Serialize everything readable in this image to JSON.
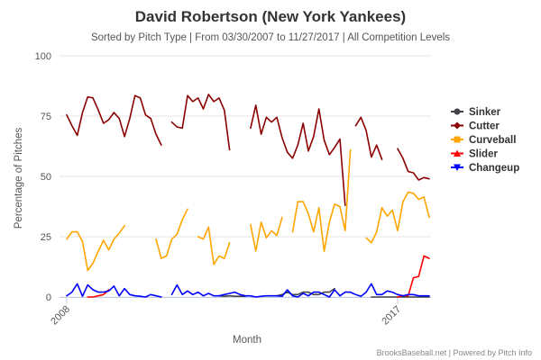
{
  "chart_data": {
    "type": "line",
    "title": "David Robertson (New York Yankees)",
    "subtitle": "Sorted by Pitch Type | From 03/30/2007 to 11/27/2017 | All Competition Levels",
    "xlabel": "Month",
    "ylabel": "Percentage of Pitches",
    "ylim": [
      0,
      100
    ],
    "y_ticks": [
      0,
      25,
      50,
      75,
      100
    ],
    "x_tick_labels": [
      {
        "label": "2008",
        "month": 0
      },
      {
        "label": "2017",
        "month": 63
      }
    ],
    "grid": true,
    "legend_position": "right",
    "x": [
      0,
      1,
      2,
      3,
      4,
      5,
      6,
      7,
      8,
      9,
      10,
      11,
      12,
      13,
      14,
      15,
      16,
      17,
      18,
      19,
      20,
      21,
      22,
      23,
      24,
      25,
      26,
      27,
      28,
      29,
      30,
      31,
      32,
      33,
      34,
      35,
      36,
      37,
      38,
      39,
      40,
      41,
      42,
      43,
      44,
      45,
      46,
      47,
      48,
      49,
      50,
      51,
      52,
      53,
      54,
      55,
      56,
      57,
      58,
      59,
      60,
      61,
      62,
      63,
      64,
      65,
      66,
      67,
      68,
      69
    ],
    "series": [
      {
        "name": "Sinker",
        "color": "#434348",
        "values": [
          null,
          null,
          null,
          null,
          null,
          null,
          null,
          null,
          null,
          null,
          null,
          null,
          null,
          null,
          null,
          null,
          null,
          null,
          null,
          null,
          null,
          null,
          null,
          null,
          null,
          null,
          null,
          null,
          null,
          0.5,
          0.3,
          0.5,
          0.3,
          0.3,
          0.3,
          null,
          null,
          null,
          null,
          null,
          0.5,
          1,
          2,
          1,
          1,
          2,
          2,
          1,
          1,
          2,
          2,
          3.5,
          null,
          null,
          null,
          null,
          null,
          null,
          0,
          0,
          0,
          0,
          0,
          0,
          0,
          0,
          0,
          0,
          0,
          0
        ]
      },
      {
        "name": "Cutter",
        "color": "#8B0000",
        "values": [
          75.5,
          71,
          67,
          76.5,
          83,
          82.5,
          77.5,
          72,
          73.5,
          76.5,
          74,
          66.5,
          74,
          83.5,
          82.5,
          75.5,
          74,
          67.5,
          63,
          null,
          72.5,
          70.5,
          70,
          83.5,
          81,
          82.5,
          78,
          84,
          81,
          82.5,
          77.5,
          61,
          null,
          null,
          null,
          70,
          79.5,
          67.5,
          74.5,
          72.5,
          74.5,
          66,
          60,
          57.5,
          63,
          72,
          60.5,
          66.5,
          78,
          65,
          59,
          62,
          65.5,
          38,
          null,
          71,
          74.5,
          69,
          58,
          63,
          57,
          null,
          null,
          61.5,
          57.5,
          52,
          51.5,
          48.5,
          49.5,
          49
        ]
      },
      {
        "name": "Curveball",
        "color": "#FFA500",
        "values": [
          24,
          27,
          27,
          23,
          11,
          14,
          19,
          23.5,
          19.5,
          24,
          26.5,
          29.5,
          null,
          null,
          null,
          null,
          null,
          24,
          16,
          17,
          24,
          26,
          32,
          36.5,
          null,
          25,
          24,
          29,
          13.5,
          17,
          16,
          22.5,
          null,
          null,
          null,
          30,
          19,
          31,
          24.5,
          27.5,
          25.5,
          33,
          null,
          27,
          39.5,
          39.5,
          34.5,
          27,
          37,
          19,
          31,
          38.5,
          37.5,
          27.5,
          61,
          null,
          null,
          24.5,
          22.5,
          27,
          37,
          33.5,
          36,
          27.5,
          39.5,
          43.5,
          43,
          40.5,
          41.5,
          33
        ]
      },
      {
        "name": "Slider",
        "color": "#FF0000",
        "values": [
          null,
          null,
          null,
          null,
          0,
          0,
          0.5,
          1,
          3,
          null,
          null,
          null,
          null,
          null,
          null,
          null,
          null,
          null,
          null,
          null,
          null,
          null,
          null,
          null,
          null,
          null,
          null,
          null,
          null,
          null,
          null,
          null,
          null,
          null,
          null,
          null,
          null,
          null,
          null,
          null,
          null,
          null,
          null,
          null,
          null,
          null,
          null,
          null,
          null,
          null,
          null,
          null,
          null,
          null,
          null,
          null,
          null,
          null,
          null,
          null,
          null,
          null,
          null,
          0,
          0.5,
          0.5,
          8,
          8.5,
          17,
          16
        ]
      },
      {
        "name": "Changeup",
        "color": "#0000FF",
        "values": [
          0.5,
          2,
          5.5,
          0.3,
          5,
          3,
          2,
          2,
          2.5,
          4.5,
          0.5,
          3.5,
          1,
          0.5,
          0.3,
          0,
          1,
          0.5,
          0,
          null,
          1,
          5,
          1,
          2.5,
          1,
          2,
          0.5,
          1.5,
          0.5,
          0.5,
          1,
          1.5,
          2,
          1,
          0.5,
          0.5,
          0,
          0.3,
          0.5,
          0.5,
          0.5,
          0.3,
          3,
          0.5,
          0,
          1.5,
          0.5,
          2,
          2,
          1,
          0,
          3,
          0.5,
          2,
          2,
          1,
          0.3,
          2,
          5.5,
          1,
          1,
          2.5,
          2,
          1,
          0.5,
          1,
          1,
          0.5,
          0.5,
          0.5
        ]
      }
    ]
  },
  "legend": {
    "items": [
      "Sinker",
      "Cutter",
      "Curveball",
      "Slider",
      "Changeup"
    ]
  },
  "credits": "BrooksBaseball.net | Powered by Pitch Info"
}
